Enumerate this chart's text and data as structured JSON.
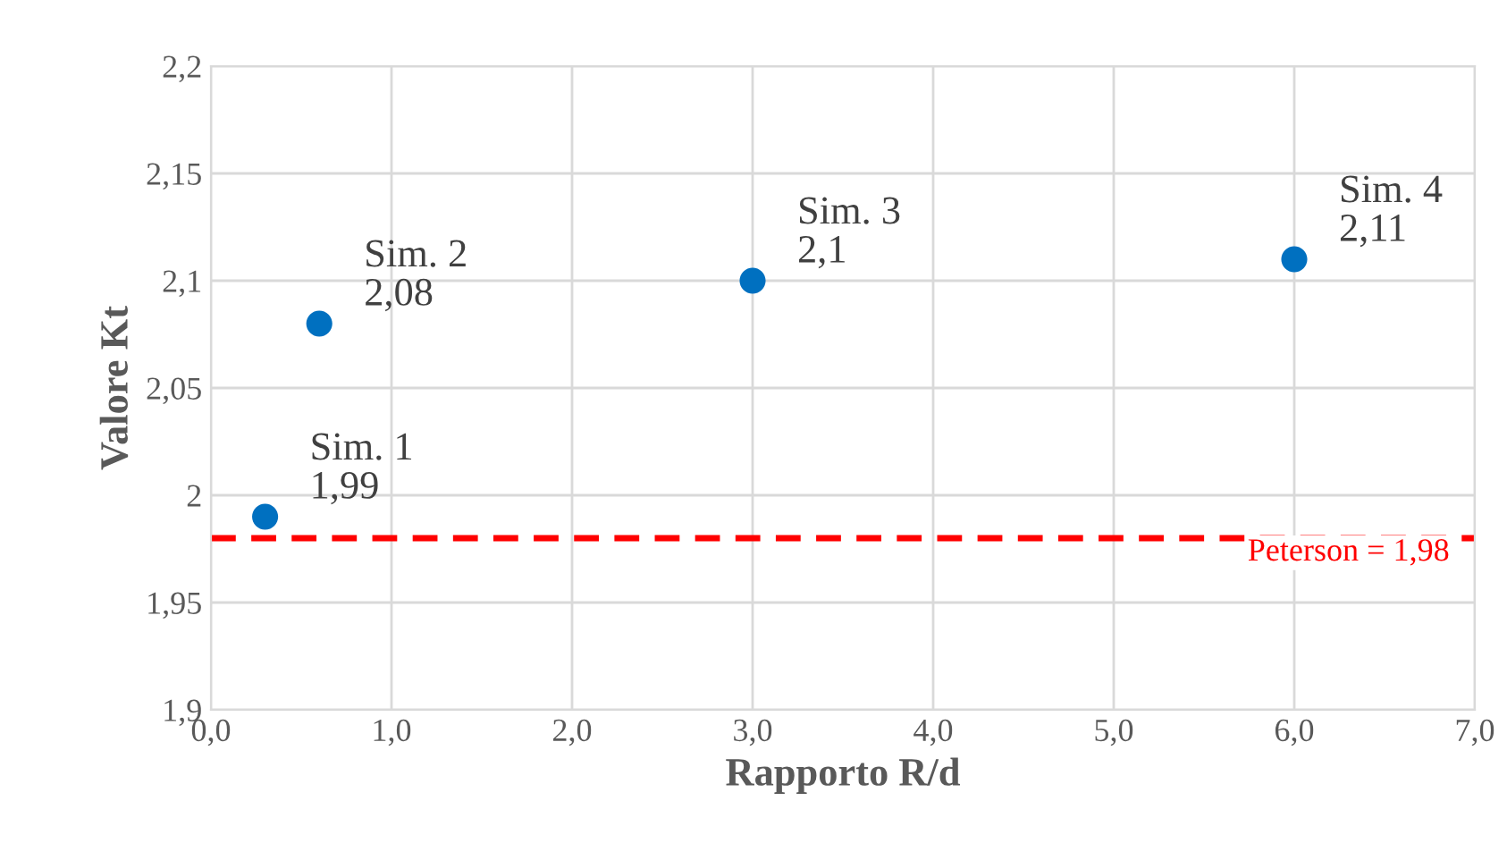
{
  "chart_data": {
    "type": "scatter",
    "xlabel": "Rapporto R/d",
    "ylabel": "Valore Kt",
    "x": [
      0.3,
      0.6,
      3.0,
      6.0
    ],
    "series": [
      {
        "color": "#0070c0",
        "values": [
          1.99,
          2.08,
          2.1,
          2.11
        ],
        "value_labels": [
          "Sim. 1\n1,99",
          "Sim. 2\n2,08",
          "Sim. 3\n2,1",
          "Sim. 4\n2,11"
        ]
      }
    ],
    "marker": "circle",
    "xlim": [
      0,
      7
    ],
    "ylim": [
      1.9,
      2.2
    ],
    "xticks": [
      {
        "value": 0,
        "label": "0,0"
      },
      {
        "value": 1,
        "label": "1,0"
      },
      {
        "value": 2,
        "label": "2,0"
      },
      {
        "value": 3,
        "label": "3,0"
      },
      {
        "value": 4,
        "label": "4,0"
      },
      {
        "value": 5,
        "label": "5,0"
      },
      {
        "value": 6,
        "label": "6,0"
      },
      {
        "value": 7,
        "label": "7,0"
      }
    ],
    "yticks": [
      {
        "value": 1.9,
        "label": "1,9"
      },
      {
        "value": 1.95,
        "label": "1,95"
      },
      {
        "value": 2,
        "label": "2"
      },
      {
        "value": 2.05,
        "label": "2,05"
      },
      {
        "value": 2.1,
        "label": "2,1"
      },
      {
        "value": 2.15,
        "label": "2,15"
      },
      {
        "value": 2.2,
        "label": "2,2"
      }
    ],
    "grid": true,
    "legend": false,
    "ref_lines": [
      {
        "axis": "y",
        "value": 1.98,
        "label": "Peterson = 1,98",
        "color": "#ff0000",
        "line_style": "dashed"
      }
    ]
  }
}
